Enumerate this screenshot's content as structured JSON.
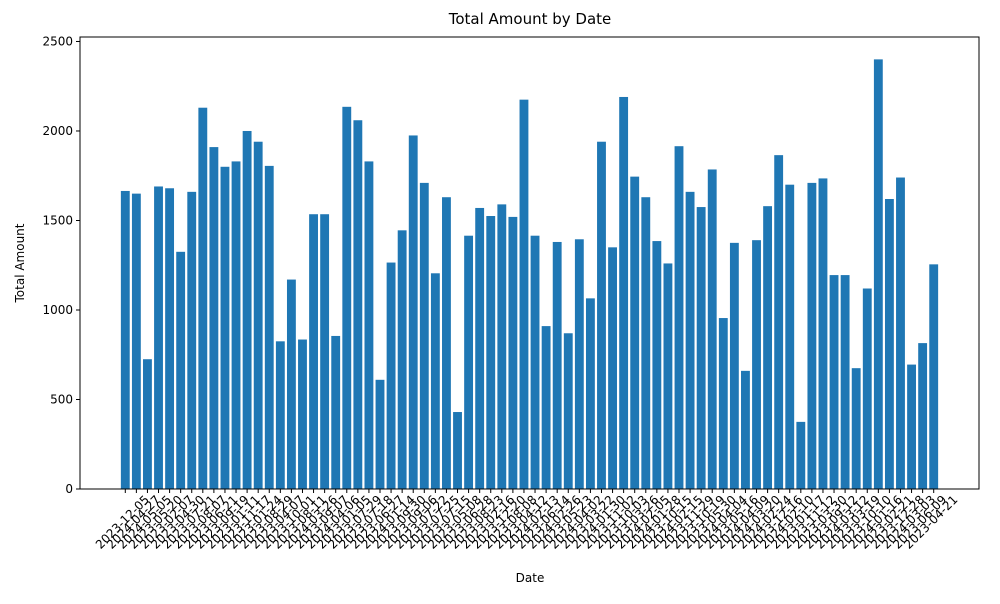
{
  "chart_data": {
    "type": "bar",
    "title": "Total Amount by Date",
    "x_label": "Date",
    "y_label": "Total Amount",
    "categories": [
      "2023-12-05",
      "2024-04-27",
      "2024-05-05",
      "2023-05-20",
      "2023-02-07",
      "2023-04-30",
      "2023-07-21",
      "2023-08-07",
      "2023-06-21",
      "2023-09-19",
      "2023-01-11",
      "2023-11-17",
      "2023-01-24",
      "2023-08-29",
      "2023-04-07",
      "2023-10-01",
      "2023-08-11",
      "2024-03-26",
      "2023-09-07",
      "2024-04-06",
      "2023-01-05",
      "2023-07-29",
      "2023-07-18",
      "2023-06-27",
      "2024-01-14",
      "2023-09-30",
      "2023-09-06",
      "2023-07-22",
      "2023-07-25",
      "2023-07-15",
      "2023-05-08",
      "2023-06-28",
      "2023-08-23",
      "2023-02-16",
      "2023-12-20",
      "2023-08-08",
      "2023-04-12",
      "2024-02-13",
      "2023-06-14",
      "2024-02-26",
      "2023-05-23",
      "2024-04-02",
      "2023-03-22",
      "2024-01-30",
      "2023-11-02",
      "2023-10-03",
      "2023-03-26",
      "2024-02-05",
      "2024-01-28",
      "2023-10-15",
      "2024-02-15",
      "2023-11-29",
      "2023-10-19",
      "2023-05-30",
      "2024-04-04",
      "2023-05-16",
      "2024-04-09",
      "2024-03-20",
      "2024-02-24",
      "2023-12-16",
      "2024-02-10",
      "2023-01-17",
      "2023-11-12",
      "2023-03-30",
      "2023-09-12",
      "2024-03-12",
      "2023-03-19",
      "2023-10-10",
      "2024-01-16",
      "2023-02-21",
      "2023-12-28",
      "2024-03-03",
      "2023-06-09",
      "2023-04-21"
    ],
    "values": [
      1665,
      1650,
      725,
      1690,
      1680,
      1325,
      1660,
      2130,
      1910,
      1800,
      1830,
      2000,
      1940,
      1805,
      825,
      1170,
      835,
      1535,
      1535,
      855,
      2135,
      2060,
      1830,
      610,
      1265,
      1445,
      1975,
      1710,
      1205,
      1630,
      430,
      1415,
      1570,
      1525,
      1590,
      1520,
      2175,
      1415,
      910,
      1380,
      870,
      1395,
      1065,
      1940,
      1350,
      2190,
      1745,
      1630,
      1385,
      1260,
      1915,
      1660,
      1575,
      1785,
      955,
      1375,
      660,
      1390,
      1580,
      1865,
      1700,
      375,
      1710,
      1735,
      1195,
      1195,
      675,
      1120,
      2400,
      1620,
      1740,
      695,
      815,
      1255
    ],
    "color": "#1f77b4",
    "ylim": [
      0,
      2525
    ],
    "yticks": [
      0,
      500,
      1000,
      1500,
      2000,
      2500
    ],
    "grid": false
  }
}
